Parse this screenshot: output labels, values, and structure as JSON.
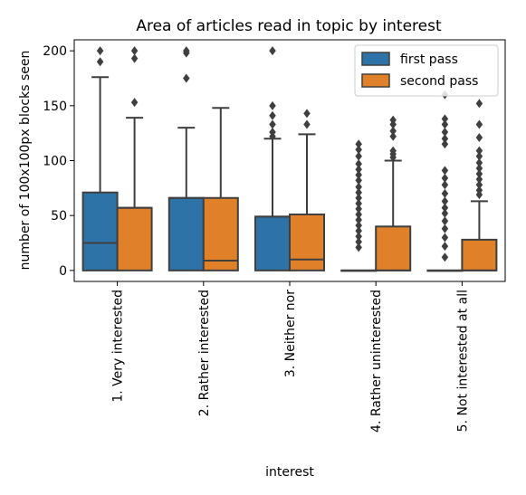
{
  "chart_data": {
    "type": "box",
    "title": "Area of articles read in topic by interest",
    "xlabel": "interest",
    "ylabel": "number of 100x100px blocks seen",
    "ylim": [
      -10,
      210
    ],
    "yticks": [
      0,
      50,
      100,
      150,
      200
    ],
    "categories": [
      "1. Very interested",
      "2. Rather interested",
      "3. Neither nor",
      "4. Rather uninterested",
      "5. Not interested at all"
    ],
    "legend_position": "top-right",
    "series": [
      {
        "name": "first pass",
        "color": "#2e73a8",
        "boxes": [
          {
            "whisker_low": 0,
            "q1": 0,
            "median": 25,
            "q3": 71,
            "whisker_high": 176,
            "outliers": [
              190,
              200
            ]
          },
          {
            "whisker_low": 0,
            "q1": 0,
            "median": 66,
            "q3": 66,
            "whisker_high": 130,
            "outliers": [
              175,
              198,
              200
            ]
          },
          {
            "whisker_low": 0,
            "q1": 0,
            "median": 49,
            "q3": 49,
            "whisker_high": 120,
            "outliers": [
              122,
              126,
              133,
              141,
              150,
              200
            ]
          },
          {
            "whisker_low": 0,
            "q1": 0,
            "median": 0,
            "q3": 0,
            "whisker_high": 0,
            "outliers": [
              21,
              26,
              31,
              36,
              41,
              46,
              51,
              56,
              61,
              66,
              71,
              76,
              82,
              87,
              92,
              97,
              104,
              110,
              115
            ]
          },
          {
            "whisker_low": 0,
            "q1": 0,
            "median": 0,
            "q3": 0,
            "whisker_high": 0,
            "outliers": [
              12,
              22,
              30,
              38,
              45,
              52,
              57,
              63,
              70,
              78,
              84,
              91,
              115,
              120,
              126,
              133,
              138,
              160
            ]
          }
        ]
      },
      {
        "name": "second pass",
        "color": "#e0812a",
        "boxes": [
          {
            "whisker_low": 0,
            "q1": 0,
            "median": 57,
            "q3": 57,
            "whisker_high": 139,
            "outliers": [
              153,
              193,
              200
            ]
          },
          {
            "whisker_low": 0,
            "q1": 0,
            "median": 9,
            "q3": 66,
            "whisker_high": 148,
            "outliers": []
          },
          {
            "whisker_low": 0,
            "q1": 0,
            "median": 10,
            "q3": 51,
            "whisker_high": 124,
            "outliers": [
              133,
              143
            ]
          },
          {
            "whisker_low": 0,
            "q1": 0,
            "median": 0,
            "q3": 40,
            "whisker_high": 100,
            "outliers": [
              103,
              106,
              109,
              122,
              127,
              133,
              137
            ]
          },
          {
            "whisker_low": 0,
            "q1": 0,
            "median": 0,
            "q3": 28,
            "whisker_high": 63,
            "outliers": [
              69,
              73,
              78,
              83,
              88,
              93,
              98,
              104,
              109,
              121,
              133,
              152
            ]
          }
        ]
      }
    ]
  }
}
